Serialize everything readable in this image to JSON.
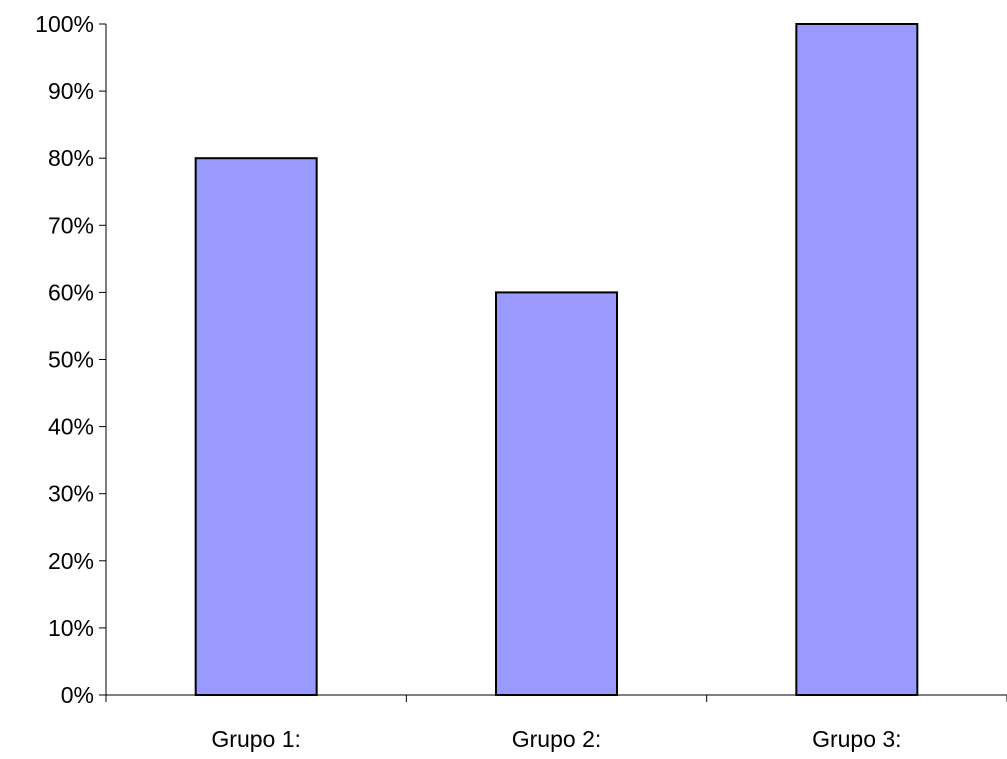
{
  "chart_data": {
    "type": "bar",
    "categories": [
      "Grupo 1:",
      "Grupo 2:",
      "Grupo 3:"
    ],
    "values": [
      80,
      60,
      100
    ],
    "title": "",
    "xlabel": "",
    "ylabel": "",
    "ylim": [
      0,
      100
    ],
    "y_ticks": [
      "0%",
      "10%",
      "20%",
      "30%",
      "40%",
      "50%",
      "60%",
      "70%",
      "80%",
      "90%",
      "100%"
    ],
    "bar_color": "#9999ff",
    "bar_border_color": "#000000",
    "grid": false,
    "legend": "none"
  }
}
